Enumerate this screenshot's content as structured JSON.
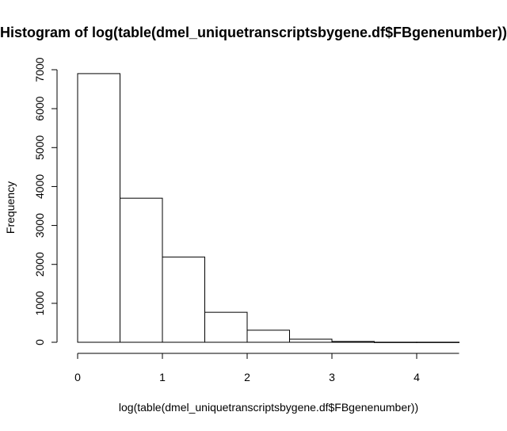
{
  "chart_data": {
    "type": "bar",
    "title": "Histogram of log(table(dmel_uniquetranscriptsbygene.df$FBgenenumber))",
    "xlabel": "log(table(dmel_uniquetranscriptsbygene.df$FBgenenumber))",
    "ylabel": "Frequency",
    "bins": [
      {
        "start": 0.0,
        "end": 0.5,
        "value": 6900
      },
      {
        "start": 0.5,
        "end": 1.0,
        "value": 3700
      },
      {
        "start": 1.0,
        "end": 1.5,
        "value": 2190
      },
      {
        "start": 1.5,
        "end": 2.0,
        "value": 770
      },
      {
        "start": 2.0,
        "end": 2.5,
        "value": 310
      },
      {
        "start": 2.5,
        "end": 3.0,
        "value": 80
      },
      {
        "start": 3.0,
        "end": 3.5,
        "value": 20
      },
      {
        "start": 3.5,
        "end": 4.0,
        "value": 2
      },
      {
        "start": 4.0,
        "end": 4.5,
        "value": 2
      }
    ],
    "xlim": [
      0,
      4.5
    ],
    "ylim": [
      0,
      7000
    ],
    "xticks": [
      0,
      1,
      2,
      3,
      4
    ],
    "xtick_labels": [
      "0",
      "1",
      "2",
      "3",
      "4"
    ],
    "yticks": [
      0,
      1000,
      2000,
      3000,
      4000,
      5000,
      6000,
      7000
    ],
    "ytick_labels": [
      "0",
      "1000",
      "2000",
      "3000",
      "4000",
      "5000",
      "6000",
      "7000"
    ],
    "grid": false
  }
}
